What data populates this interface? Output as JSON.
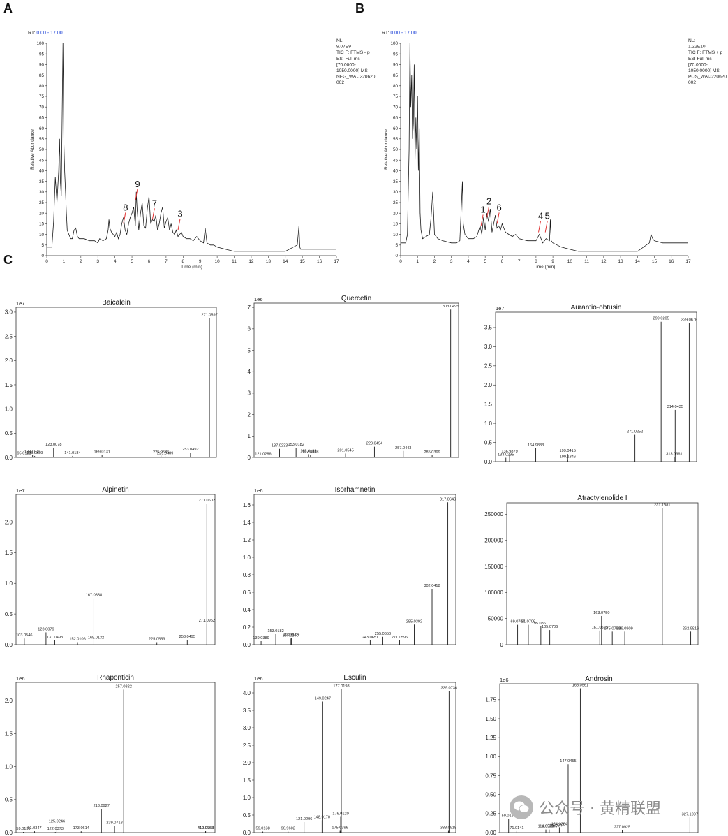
{
  "panel_labels": [
    "A",
    "B",
    "C"
  ],
  "watermark": "公众号 · 黄精联盟",
  "chart_data": [
    {
      "type": "line",
      "panel": "A",
      "rt_label": "RT:",
      "rt_range": "0.00 - 17.00",
      "info": [
        "NL:",
        "9.07E9",
        "TIC F: FTMS - p",
        "ESI Full ms",
        "[70.0000-",
        "1050.0000]  MS",
        "NEG_WAIJ220620",
        "002"
      ],
      "xlabel": "Time (min)",
      "ylabel": "Relative Abundance",
      "xlim": [
        0,
        17
      ],
      "ylim": [
        0,
        100
      ],
      "xticks": [
        0,
        1,
        2,
        3,
        4,
        5,
        6,
        7,
        8,
        9,
        10,
        11,
        12,
        13,
        14,
        15,
        16,
        17
      ],
      "yticks": [
        0,
        5,
        10,
        15,
        20,
        25,
        30,
        35,
        40,
        45,
        50,
        55,
        60,
        65,
        70,
        75,
        80,
        85,
        90,
        95,
        100
      ],
      "x": [
        0,
        0.3,
        0.4,
        0.5,
        0.6,
        0.7,
        0.75,
        0.8,
        0.85,
        0.9,
        0.95,
        1.0,
        1.05,
        1.1,
        1.15,
        1.2,
        1.3,
        1.4,
        1.5,
        1.6,
        1.7,
        1.8,
        1.9,
        2.0,
        2.2,
        2.5,
        2.8,
        3.0,
        3.1,
        3.3,
        3.5,
        3.6,
        3.65,
        3.7,
        3.8,
        3.9,
        4.0,
        4.1,
        4.2,
        4.3,
        4.4,
        4.5,
        4.6,
        4.7,
        4.8,
        4.9,
        5.0,
        5.1,
        5.2,
        5.25,
        5.3,
        5.4,
        5.5,
        5.6,
        5.7,
        5.8,
        5.9,
        6.0,
        6.1,
        6.2,
        6.3,
        6.4,
        6.5,
        6.6,
        6.7,
        6.8,
        6.9,
        7.0,
        7.1,
        7.2,
        7.3,
        7.4,
        7.5,
        7.6,
        7.7,
        7.8,
        7.9,
        8.0,
        8.2,
        8.4,
        8.6,
        8.8,
        9.0,
        9.2,
        9.3,
        9.4,
        9.6,
        9.8,
        10.0,
        10.5,
        11.0,
        11.5,
        12.0,
        13.0,
        14.0,
        14.7,
        14.8,
        14.85,
        14.9,
        15.0,
        15.5,
        16.0,
        17.0
      ],
      "y": [
        4,
        4,
        16,
        37,
        25,
        40,
        55,
        35,
        28,
        65,
        100,
        55,
        40,
        30,
        20,
        12,
        10,
        8,
        8,
        12,
        13,
        9,
        8,
        8,
        8,
        7,
        7,
        6,
        8,
        7,
        8,
        12,
        17,
        13,
        11,
        10,
        9,
        11,
        8,
        10,
        15,
        18,
        12,
        10,
        15,
        18,
        20,
        23,
        14,
        30,
        22,
        12,
        20,
        25,
        14,
        13,
        22,
        28,
        15,
        17,
        16,
        19,
        12,
        15,
        20,
        23,
        13,
        16,
        18,
        12,
        15,
        11,
        10,
        12,
        9,
        10,
        11,
        9,
        8,
        8,
        7,
        9,
        7,
        6,
        13,
        6,
        5,
        5,
        4,
        3,
        2,
        2,
        2,
        2,
        2,
        5,
        14,
        4,
        3,
        3,
        3,
        3,
        3
      ],
      "annotations": [
        {
          "label": "8",
          "x": 4.5,
          "y": 15
        },
        {
          "label": "9",
          "x": 5.2,
          "y": 26
        },
        {
          "label": "7",
          "x": 6.2,
          "y": 17
        },
        {
          "label": "3",
          "x": 7.7,
          "y": 12
        }
      ]
    },
    {
      "type": "line",
      "panel": "B",
      "rt_label": "RT:",
      "rt_range": "0.00 - 17.00",
      "info": [
        "NL:",
        "1.22E10",
        "TIC F: FTMS + p",
        "ESI Full ms",
        "[70.0000-",
        "1050.0000]  MS",
        "POS_WAIJ220620",
        "002"
      ],
      "xlabel": "Time (min)",
      "ylabel": "Relative Abundance",
      "xlim": [
        0,
        17
      ],
      "ylim": [
        0,
        100
      ],
      "xticks": [
        0,
        1,
        2,
        3,
        4,
        5,
        6,
        7,
        8,
        9,
        10,
        11,
        12,
        13,
        14,
        15,
        16,
        17
      ],
      "yticks": [
        0,
        5,
        10,
        15,
        20,
        25,
        30,
        35,
        40,
        45,
        50,
        55,
        60,
        65,
        70,
        75,
        80,
        85,
        90,
        95,
        100
      ],
      "x": [
        0,
        0.3,
        0.4,
        0.5,
        0.55,
        0.6,
        0.65,
        0.7,
        0.75,
        0.8,
        0.85,
        0.9,
        0.95,
        1.0,
        1.05,
        1.1,
        1.15,
        1.2,
        1.3,
        1.5,
        1.7,
        1.8,
        1.9,
        2.0,
        2.2,
        2.5,
        3.0,
        3.3,
        3.5,
        3.6,
        3.65,
        3.7,
        3.8,
        4.0,
        4.3,
        4.5,
        4.7,
        4.8,
        4.9,
        5.0,
        5.1,
        5.2,
        5.3,
        5.4,
        5.5,
        5.6,
        5.7,
        5.8,
        5.9,
        6.0,
        6.2,
        6.4,
        6.6,
        6.8,
        7.0,
        7.5,
        8.0,
        8.2,
        8.4,
        8.6,
        8.8,
        8.85,
        8.9,
        9.0,
        9.5,
        10.0,
        10.5,
        11.0,
        12.0,
        13.0,
        14.0,
        14.7,
        14.8,
        14.85,
        14.9,
        15.0,
        15.5,
        16.0,
        17.0
      ],
      "y": [
        6,
        6,
        10,
        50,
        100,
        70,
        85,
        55,
        62,
        90,
        45,
        65,
        50,
        75,
        40,
        60,
        20,
        12,
        8,
        9,
        10,
        18,
        30,
        10,
        8,
        7,
        6,
        6,
        7,
        25,
        35,
        15,
        10,
        8,
        8,
        9,
        14,
        10,
        18,
        12,
        20,
        16,
        22,
        11,
        15,
        19,
        13,
        14,
        12,
        15,
        11,
        10,
        9,
        10,
        8,
        7,
        7,
        10,
        6,
        8,
        7,
        17,
        7,
        6,
        4,
        3,
        2,
        2,
        2,
        2,
        2,
        6,
        10,
        9,
        8,
        7,
        6,
        6,
        6
      ],
      "annotations": [
        {
          "label": "1",
          "x": 4.75,
          "y": 14
        },
        {
          "label": "2",
          "x": 5.1,
          "y": 18
        },
        {
          "label": "6",
          "x": 5.7,
          "y": 15
        },
        {
          "label": "4",
          "x": 8.15,
          "y": 11
        },
        {
          "label": "5",
          "x": 8.55,
          "y": 11
        }
      ]
    },
    {
      "type": "bar",
      "panel": "C",
      "title": "Baicalein",
      "exponent": "1e7",
      "ylim": [
        0,
        3.1
      ],
      "yticks": [
        0.0,
        0.5,
        1.0,
        1.5,
        2.0,
        2.5,
        3.0
      ],
      "peaks": [
        {
          "mz": 95.0131,
          "i": 0.02
        },
        {
          "mz": 103.0546,
          "i": 0.05
        },
        {
          "mz": 105.0339,
          "i": 0.03
        },
        {
          "mz": 123.0078,
          "i": 0.2
        },
        {
          "mz": 141.0184,
          "i": 0.03
        },
        {
          "mz": 169.0131,
          "i": 0.05
        },
        {
          "mz": 225.0545,
          "i": 0.04
        },
        {
          "mz": 229.0489,
          "i": 0.02
        },
        {
          "mz": 253.0492,
          "i": 0.1
        },
        {
          "mz": 271.0597,
          "i": 2.88
        }
      ],
      "xlim": [
        90,
        275
      ]
    },
    {
      "type": "bar",
      "panel": "C",
      "title": "Quercetin",
      "exponent": "1e6",
      "ylim": [
        0,
        7.2
      ],
      "yticks": [
        0,
        1,
        2,
        3,
        4,
        5,
        6,
        7
      ],
      "peaks": [
        {
          "mz": 121.0286,
          "i": 0.02
        },
        {
          "mz": 137.0233,
          "i": 0.4
        },
        {
          "mz": 153.0182,
          "i": 0.45
        },
        {
          "mz": 165.0183,
          "i": 0.15
        },
        {
          "mz": 167.0338,
          "i": 0.12
        },
        {
          "mz": 201.0545,
          "i": 0.18
        },
        {
          "mz": 229.0494,
          "i": 0.5
        },
        {
          "mz": 257.0443,
          "i": 0.3
        },
        {
          "mz": 285.0399,
          "i": 0.1
        },
        {
          "mz": 303.0495,
          "i": 6.9
        }
      ],
      "xlim": [
        115,
        308
      ]
    },
    {
      "type": "bar",
      "panel": "C",
      "title": "Aurantio-obtusin",
      "exponent": "1e7",
      "ylim": [
        0,
        3.9
      ],
      "yticks": [
        0.0,
        0.5,
        1.0,
        1.5,
        2.0,
        2.5,
        3.0,
        3.5
      ],
      "peaks": [
        {
          "mz": 133.0295,
          "i": 0.1
        },
        {
          "mz": 136.9879,
          "i": 0.18
        },
        {
          "mz": 164.9833,
          "i": 0.35
        },
        {
          "mz": 199.0415,
          "i": 0.2
        },
        {
          "mz": 199.1346,
          "i": 0.05
        },
        {
          "mz": 271.0252,
          "i": 0.7
        },
        {
          "mz": 299.0205,
          "i": 3.65
        },
        {
          "mz": 313.0361,
          "i": 0.12
        },
        {
          "mz": 314.0435,
          "i": 1.35
        },
        {
          "mz": 329.0676,
          "i": 3.62
        }
      ],
      "xlim": [
        125,
        334
      ]
    },
    {
      "type": "bar",
      "panel": "C",
      "title": "Alpinetin",
      "exponent": "1e7",
      "ylim": [
        0,
        2.45
      ],
      "yticks": [
        0.0,
        0.5,
        1.0,
        1.5,
        2.0
      ],
      "peaks": [
        {
          "mz": 103.0546,
          "i": 0.1
        },
        {
          "mz": 123.0079,
          "i": 0.2
        },
        {
          "mz": 131.0493,
          "i": 0.07
        },
        {
          "mz": 152.0106,
          "i": 0.04
        },
        {
          "mz": 167.0338,
          "i": 0.76
        },
        {
          "mz": 169.0132,
          "i": 0.06
        },
        {
          "mz": 225.0553,
          "i": 0.04
        },
        {
          "mz": 253.0495,
          "i": 0.08
        },
        {
          "mz": 271.0602,
          "i": 2.3
        },
        {
          "mz": 271.0952,
          "i": 0.34
        }
      ],
      "xlim": [
        98,
        276
      ]
    },
    {
      "type": "bar",
      "panel": "C",
      "title": "Isorhamnetin",
      "exponent": "1e6",
      "ylim": [
        0,
        1.72
      ],
      "yticks": [
        0.0,
        0.2,
        0.4,
        0.6,
        0.8,
        1.0,
        1.2,
        1.4,
        1.6
      ],
      "peaks": [
        {
          "mz": 139.0389,
          "i": 0.04
        },
        {
          "mz": 153.0182,
          "i": 0.12
        },
        {
          "mz": 167.034,
          "i": 0.07
        },
        {
          "mz": 168.0054,
          "i": 0.08
        },
        {
          "mz": 243.0651,
          "i": 0.05
        },
        {
          "mz": 255.065,
          "i": 0.09
        },
        {
          "mz": 271.0596,
          "i": 0.05
        },
        {
          "mz": 285.0392,
          "i": 0.23
        },
        {
          "mz": 302.0418,
          "i": 0.64
        },
        {
          "mz": 317.0649,
          "i": 1.63
        }
      ],
      "xlim": [
        135,
        322
      ]
    },
    {
      "type": "bar",
      "panel": "C",
      "title": "Atractylenolide I",
      "exponent": "",
      "ylim": [
        0,
        272000
      ],
      "yticks": [
        0,
        50000,
        100000,
        150000,
        200000,
        250000
      ],
      "peaks": [
        {
          "mz": 69.0707,
          "i": 38000
        },
        {
          "mz": 81.0706,
          "i": 38000
        },
        {
          "mz": 95.0861,
          "i": 35000
        },
        {
          "mz": 105.0706,
          "i": 28000
        },
        {
          "mz": 161.0595,
          "i": 27000
        },
        {
          "mz": 163.075,
          "i": 55000
        },
        {
          "mz": 175.075,
          "i": 25000
        },
        {
          "mz": 189.0909,
          "i": 25000
        },
        {
          "mz": 231.1381,
          "i": 262000
        },
        {
          "mz": 262.9816,
          "i": 25000
        }
      ],
      "xlim": [
        60,
        268
      ]
    },
    {
      "type": "bar",
      "panel": "C",
      "title": "Rhaponticin",
      "exponent": "1e6",
      "ylim": [
        0,
        2.28
      ],
      "yticks": [
        0.0,
        0.5,
        1.0,
        1.5,
        2.0
      ],
      "peaks": [
        {
          "mz": 59.0139,
          "i": 0.01
        },
        {
          "mz": 81.0347,
          "i": 0.02
        },
        {
          "mz": 122.0373,
          "i": 0.01
        },
        {
          "mz": 125.0246,
          "i": 0.12
        },
        {
          "mz": 173.0614,
          "i": 0.02
        },
        {
          "mz": 213.0927,
          "i": 0.36
        },
        {
          "mz": 239.0718,
          "i": 0.1
        },
        {
          "mz": 257.0822,
          "i": 2.17
        },
        {
          "mz": 419.0062,
          "i": 0.02
        },
        {
          "mz": 419.0788,
          "i": 0.02
        }
      ],
      "xlim": [
        50,
        432
      ]
    },
    {
      "type": "bar",
      "panel": "C",
      "title": "Esculin",
      "exponent": "1e6",
      "ylim": [
        0,
        4.3
      ],
      "yticks": [
        0.0,
        0.5,
        1.0,
        1.5,
        2.0,
        2.5,
        3.0,
        3.5,
        4.0
      ],
      "peaks": [
        {
          "mz": 59.0138,
          "i": 0.03
        },
        {
          "mz": 96.9602,
          "i": 0.03
        },
        {
          "mz": 121.0296,
          "i": 0.3
        },
        {
          "mz": 148.017,
          "i": 0.35
        },
        {
          "mz": 149.0247,
          "i": 3.75
        },
        {
          "mz": 175.0396,
          "i": 0.05
        },
        {
          "mz": 176.012,
          "i": 0.45
        },
        {
          "mz": 177.0198,
          "i": 4.1
        },
        {
          "mz": 338.0918,
          "i": 0.05
        },
        {
          "mz": 339.0736,
          "i": 4.05
        }
      ],
      "xlim": [
        50,
        345
      ]
    },
    {
      "type": "bar",
      "panel": "C",
      "title": "Androsin",
      "exponent": "1e6",
      "ylim": [
        0,
        1.96
      ],
      "yticks": [
        0.0,
        0.25,
        0.5,
        0.75,
        1.0,
        1.25,
        1.5,
        1.75
      ],
      "peaks": [
        {
          "mz": 59.0139,
          "i": 0.18
        },
        {
          "mz": 71.0141,
          "i": 0.02
        },
        {
          "mz": 114.056,
          "i": 0.04
        },
        {
          "mz": 119.0505,
          "i": 0.04
        },
        {
          "mz": 129.0347,
          "i": 0.05
        },
        {
          "mz": 134.0284,
          "i": 0.07
        },
        {
          "mz": 147.0455,
          "i": 0.9
        },
        {
          "mz": 165.0561,
          "i": 1.9
        },
        {
          "mz": 227.0925,
          "i": 0.03
        },
        {
          "mz": 327.1097,
          "i": 0.2
        }
      ],
      "xlim": [
        50,
        335
      ]
    }
  ]
}
